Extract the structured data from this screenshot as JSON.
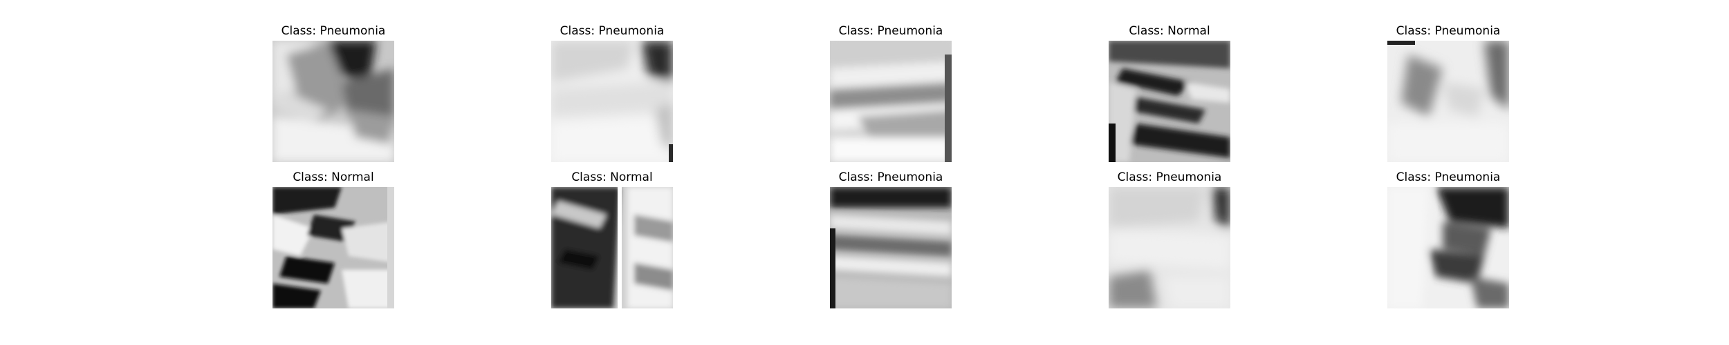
{
  "figure": {
    "panels": [
      {
        "title": "Class: Pneumonia"
      },
      {
        "title": "Class: Pneumonia"
      },
      {
        "title": "Class: Pneumonia"
      },
      {
        "title": "Class: Normal"
      },
      {
        "title": "Class: Pneumonia"
      },
      {
        "title": "Class: Normal"
      },
      {
        "title": "Class: Normal"
      },
      {
        "title": "Class: Pneumonia"
      },
      {
        "title": "Class: Pneumonia"
      },
      {
        "title": "Class: Pneumonia"
      }
    ]
  }
}
